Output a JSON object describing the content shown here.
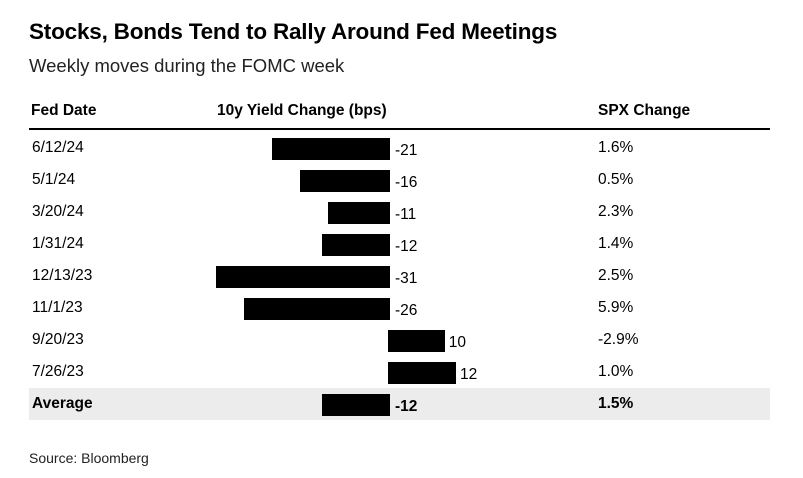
{
  "title": "Stocks, Bonds Tend to Rally Around Fed Meetings",
  "subtitle": "Weekly moves during the FOMC week",
  "source": "Source: Bloomberg",
  "chart_data": {
    "type": "table",
    "columns": [
      "Fed Date",
      "10y Yield Change (bps)",
      "SPX Change"
    ],
    "rows": [
      {
        "date": "6/12/24",
        "yield_change": -21,
        "yield_label": "-21",
        "spx": "1.6%"
      },
      {
        "date": "5/1/24",
        "yield_change": -16,
        "yield_label": "-16",
        "spx": "0.5%"
      },
      {
        "date": "3/20/24",
        "yield_change": -11,
        "yield_label": "-11",
        "spx": "2.3%"
      },
      {
        "date": "1/31/24",
        "yield_change": -12,
        "yield_label": "-12",
        "spx": "1.4%"
      },
      {
        "date": "12/13/23",
        "yield_change": -31,
        "yield_label": "-31",
        "spx": "2.5%"
      },
      {
        "date": "11/1/23",
        "yield_change": -26,
        "yield_label": "-26",
        "spx": "5.9%"
      },
      {
        "date": "9/20/23",
        "yield_change": 10,
        "yield_label": "10",
        "spx": "-2.9%"
      },
      {
        "date": "7/26/23",
        "yield_change": 12,
        "yield_label": "12",
        "spx": "1.0%"
      }
    ],
    "average": {
      "label": "Average",
      "yield_change": -12,
      "yield_label": "-12",
      "spx": "1.5%"
    },
    "bar_color": "#000000",
    "highlight_color": "#ececec"
  }
}
